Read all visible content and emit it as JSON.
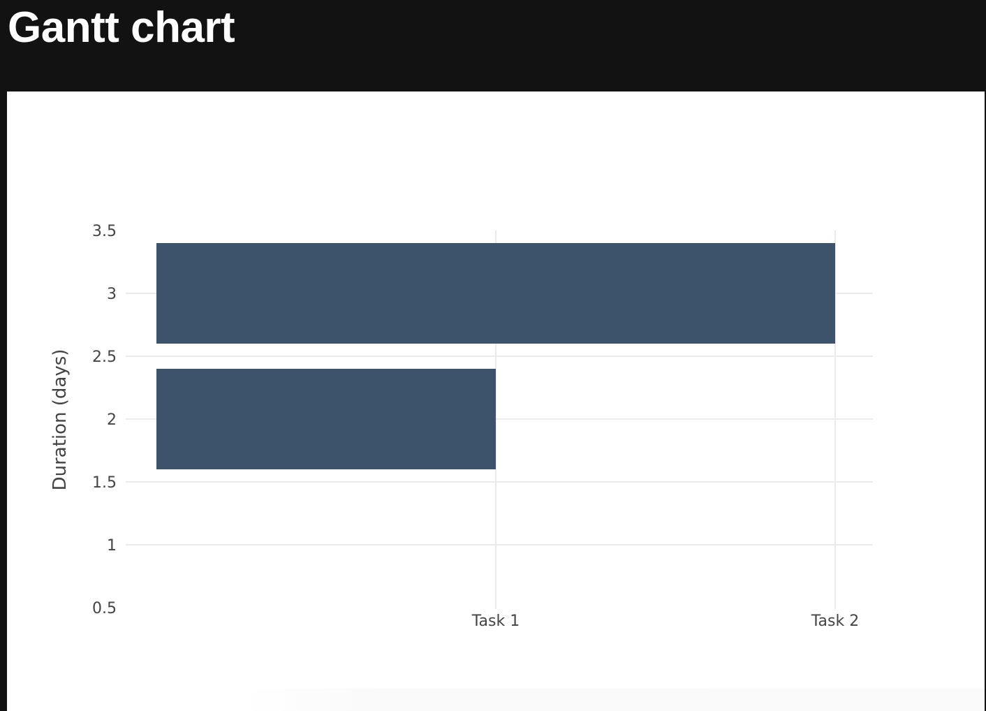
{
  "page": {
    "title": "Gantt chart"
  },
  "colors": {
    "header_background": "#121212",
    "panel_background": "#ffffff",
    "bar": "#3d536b",
    "grid": "#ebebeb",
    "text": "#444444"
  },
  "chart_data": {
    "type": "bar",
    "orientation": "horizontal",
    "title": "",
    "xlabel": "",
    "ylabel": "Duration (days)",
    "categories": [
      "Task 1",
      "Task 2"
    ],
    "x_ticks": [
      "Task 1",
      "Task 2"
    ],
    "y_ticks": [
      0.5,
      1,
      1.5,
      2,
      2.5,
      3,
      3.5
    ],
    "ylim": [
      0.5,
      3.5
    ],
    "bars": [
      {
        "y": 2,
        "length": "Task 1",
        "category_index": 0
      },
      {
        "y": 3,
        "length": "Task 2",
        "category_index": 1
      }
    ],
    "grid": true,
    "legend": false
  }
}
